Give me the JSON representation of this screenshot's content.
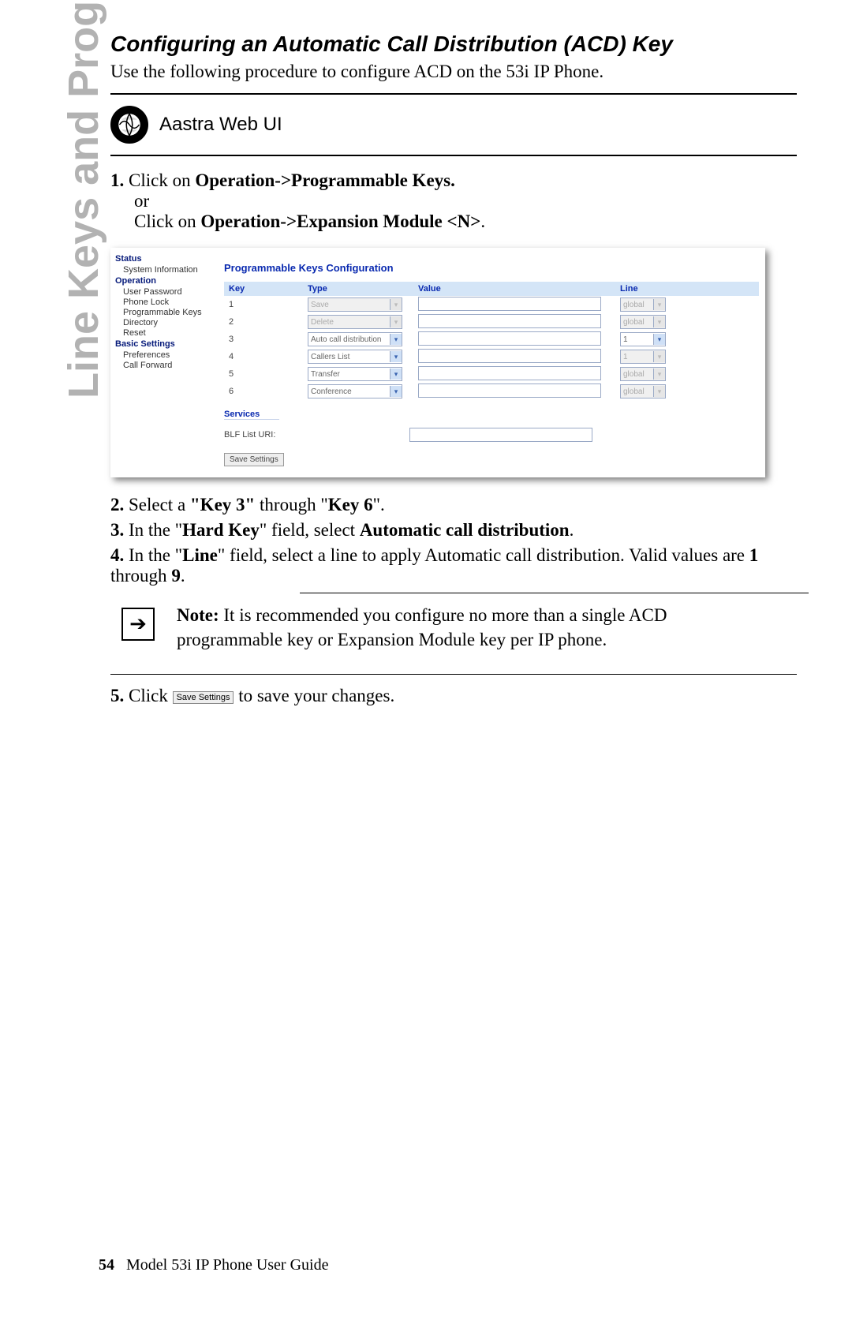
{
  "side_tab": "Line Keys and Programmable Keys",
  "title": "Configuring an Automatic Call Distribution (ACD) Key",
  "intro": "Use the following procedure to configure ACD on the 53i IP Phone.",
  "webui_label": "Aastra Web UI",
  "step1": {
    "num": "1.",
    "a": "Click on ",
    "b": "Operation->Programmable Keys.",
    "or": "or",
    "c": "Click on ",
    "d": "Operation->Expansion Module <N>",
    "e": "."
  },
  "screenshot": {
    "side": {
      "status": "Status",
      "sysinfo": "System Information",
      "operation": "Operation",
      "items_op": [
        "User Password",
        "Phone Lock",
        "Programmable Keys",
        "Directory",
        "Reset"
      ],
      "basic": "Basic Settings",
      "items_basic": [
        "Preferences",
        "Call Forward"
      ]
    },
    "main_title": "Programmable Keys Configuration",
    "headers": {
      "key": "Key",
      "type": "Type",
      "value": "Value",
      "line": "Line"
    },
    "rows": [
      {
        "key": "1",
        "type": "Save",
        "type_disabled": true,
        "line": "global",
        "line_disabled": true
      },
      {
        "key": "2",
        "type": "Delete",
        "type_disabled": true,
        "line": "global",
        "line_disabled": true
      },
      {
        "key": "3",
        "type": "Auto call distribution",
        "type_disabled": false,
        "line": "1",
        "line_disabled": false
      },
      {
        "key": "4",
        "type": "Callers List",
        "type_disabled": false,
        "line": "1",
        "line_disabled": true
      },
      {
        "key": "5",
        "type": "Transfer",
        "type_disabled": false,
        "line": "global",
        "line_disabled": true
      },
      {
        "key": "6",
        "type": "Conference",
        "type_disabled": false,
        "line": "global",
        "line_disabled": true
      }
    ],
    "services": "Services",
    "blf_label": "BLF List URI:",
    "save_btn": "Save Settings"
  },
  "step2": {
    "num": "2.",
    "a": "Select a ",
    "b": "\"Key 3\"",
    "c": " through \"",
    "d": "Key 6",
    "e": "\"."
  },
  "step3": {
    "num": "3.",
    "a": "In the \"",
    "b": "Hard Key",
    "c": "\" field, select ",
    "d": "Automatic call distribution",
    "e": "."
  },
  "step4": {
    "num": "4.",
    "a": "In the \"",
    "b": "Line",
    "c": "\" field, select a line to apply Automatic call distribution. Valid values are ",
    "d": "1",
    "e": " through ",
    "f": "9",
    "g": "."
  },
  "note": {
    "label": "Note:",
    "text": " It is recommended you configure no more than a single ACD programmable key or Expansion Module key per IP phone."
  },
  "step5": {
    "num": "5.",
    "a": "Click ",
    "btn": "Save Settings",
    "b": " to save your changes."
  },
  "footer": {
    "page": "54",
    "text": "Model 53i IP Phone User Guide"
  }
}
